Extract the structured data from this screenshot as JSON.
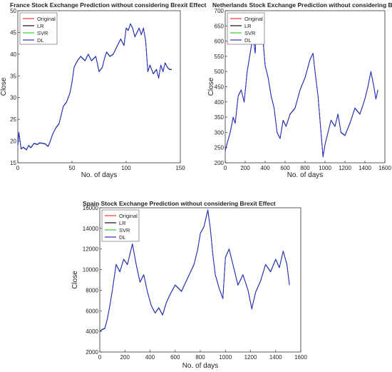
{
  "chart_data": [
    {
      "type": "line",
      "title": "France Stock Exchange Prediction without considering Brexit Effect",
      "xlabel": "No. of days",
      "ylabel": "Close",
      "xlim": [
        0,
        150
      ],
      "ylim": [
        15,
        50
      ],
      "xticks": [
        0,
        50,
        100,
        150
      ],
      "yticks": [
        15,
        20,
        25,
        30,
        35,
        40,
        45,
        50
      ],
      "grid": false,
      "legend": "top-left",
      "series": [
        {
          "name": "Original",
          "color": "#e53935"
        },
        {
          "name": "LR",
          "color": "#111111"
        },
        {
          "name": "SVR",
          "color": "#33cc33"
        },
        {
          "name": "DL",
          "color": "#2b2bcf"
        }
      ],
      "x": [
        0,
        1,
        3,
        5,
        8,
        10,
        12,
        15,
        18,
        20,
        25,
        28,
        30,
        32,
        35,
        38,
        40,
        42,
        45,
        48,
        50,
        52,
        55,
        58,
        60,
        62,
        65,
        68,
        70,
        72,
        75,
        78,
        80,
        82,
        85,
        88,
        90,
        92,
        95,
        98,
        100,
        102,
        104,
        106,
        108,
        110,
        112,
        114,
        116,
        118,
        120,
        122,
        125,
        128,
        130,
        132,
        134,
        136,
        138,
        140,
        142
      ],
      "values": [
        19,
        22,
        18.2,
        18.6,
        18,
        19,
        18.5,
        19.5,
        19.2,
        19.6,
        19.4,
        18.8,
        20,
        21.5,
        23,
        24,
        26,
        28,
        29,
        31,
        33.5,
        37,
        38.5,
        39.5,
        39,
        38.5,
        40,
        38.5,
        39,
        39.5,
        36,
        37,
        39,
        40.5,
        39.5,
        40,
        41,
        42,
        43.5,
        42,
        46,
        45.5,
        47,
        46,
        44,
        45,
        46,
        44.5,
        46,
        43,
        36,
        37.5,
        35.5,
        36.5,
        34.5,
        37.5,
        36,
        38,
        37,
        36.5,
        36.5
      ]
    },
    {
      "type": "line",
      "title": "Netherlands Stock Exchange Prediction without considering Brexit Effect",
      "xlabel": "No. of days",
      "ylabel": "Close",
      "xlim": [
        0,
        1600
      ],
      "ylim": [
        200,
        700
      ],
      "xticks": [
        0,
        200,
        400,
        600,
        800,
        1000,
        1200,
        1400,
        1600
      ],
      "yticks": [
        200,
        250,
        300,
        350,
        400,
        450,
        500,
        550,
        600,
        650,
        700
      ],
      "grid": false,
      "legend": "top-left",
      "series": [
        {
          "name": "Original",
          "color": "#e53935"
        },
        {
          "name": "LR",
          "color": "#111111"
        },
        {
          "name": "SVR",
          "color": "#33cc33"
        },
        {
          "name": "DL",
          "color": "#2b2bcf"
        }
      ],
      "x": [
        0,
        20,
        50,
        80,
        100,
        130,
        160,
        190,
        220,
        250,
        280,
        300,
        320,
        340,
        360,
        380,
        400,
        430,
        460,
        490,
        520,
        550,
        580,
        610,
        650,
        700,
        750,
        800,
        850,
        880,
        900,
        930,
        960,
        980,
        1000,
        1030,
        1060,
        1100,
        1130,
        1160,
        1200,
        1250,
        1300,
        1350,
        1400,
        1430,
        1460,
        1490,
        1510,
        1530
      ],
      "values": [
        240,
        265,
        300,
        350,
        330,
        420,
        440,
        400,
        500,
        560,
        620,
        560,
        680,
        640,
        590,
        600,
        520,
        480,
        420,
        380,
        300,
        280,
        340,
        320,
        360,
        380,
        440,
        480,
        540,
        560,
        500,
        420,
        300,
        220,
        260,
        300,
        340,
        320,
        360,
        300,
        290,
        330,
        380,
        360,
        410,
        450,
        500,
        450,
        410,
        440
      ]
    },
    {
      "type": "line",
      "title": "Spain Stock Exchange Prediction without considering Brexit Effect",
      "xlabel": "No. of days",
      "ylabel": "Close",
      "xlim": [
        0,
        1600
      ],
      "ylim": [
        2000,
        16000
      ],
      "xticks": [
        0,
        200,
        400,
        600,
        800,
        1000,
        1200,
        1400,
        1600
      ],
      "yticks": [
        2000,
        4000,
        6000,
        8000,
        10000,
        12000,
        14000,
        16000
      ],
      "grid": false,
      "legend": "top-left",
      "series": [
        {
          "name": "Original",
          "color": "#e53935"
        },
        {
          "name": "LR",
          "color": "#111111"
        },
        {
          "name": "SVR",
          "color": "#33cc33"
        },
        {
          "name": "DL",
          "color": "#2b2bcf"
        }
      ],
      "x": [
        0,
        20,
        40,
        60,
        80,
        100,
        130,
        160,
        190,
        220,
        260,
        290,
        320,
        350,
        380,
        410,
        440,
        470,
        500,
        530,
        560,
        600,
        650,
        700,
        750,
        780,
        800,
        830,
        860,
        880,
        900,
        920,
        950,
        980,
        1000,
        1030,
        1060,
        1100,
        1140,
        1180,
        1210,
        1240,
        1280,
        1320,
        1360,
        1400,
        1430,
        1460,
        1490,
        1510
      ],
      "values": [
        4000,
        4200,
        4300,
        5200,
        6500,
        8000,
        10500,
        9800,
        11000,
        10500,
        12500,
        10500,
        8800,
        9500,
        7800,
        6500,
        5800,
        6300,
        5600,
        6800,
        7600,
        8500,
        7900,
        9200,
        10500,
        12000,
        13500,
        14200,
        15800,
        14000,
        11500,
        9500,
        8200,
        7200,
        11200,
        12000,
        10500,
        8500,
        9500,
        8000,
        6200,
        7800,
        8900,
        10500,
        9800,
        11000,
        10200,
        11800,
        10500,
        8500
      ]
    }
  ]
}
